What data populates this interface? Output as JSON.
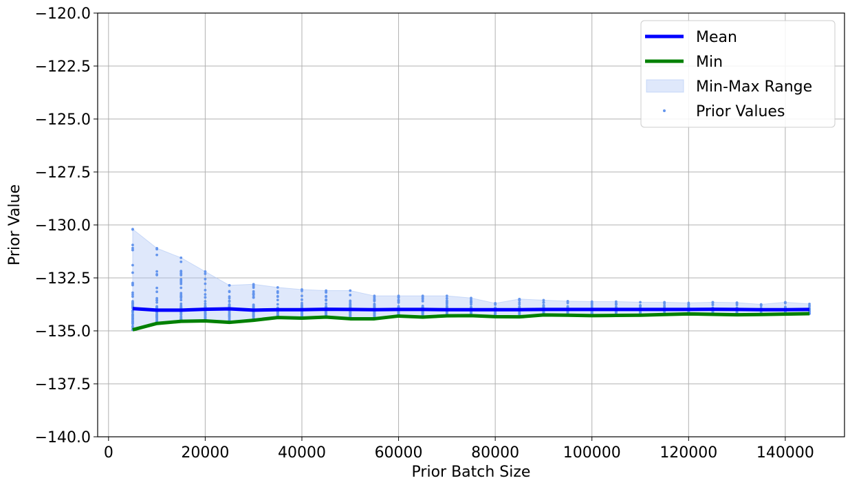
{
  "chart_data": {
    "type": "line",
    "title": "",
    "xlabel": "Prior Batch Size",
    "ylabel": "Prior Value",
    "xlim": [
      -2250,
      152250
    ],
    "ylim": [
      -140.0,
      -120.0
    ],
    "x_ticks": [
      0,
      20000,
      40000,
      60000,
      80000,
      100000,
      120000,
      140000
    ],
    "x_tick_labels": [
      "0",
      "20000",
      "40000",
      "60000",
      "80000",
      "100000",
      "120000",
      "140000"
    ],
    "y_ticks": [
      -140.0,
      -137.5,
      -135.0,
      -132.5,
      -130.0,
      -127.5,
      -125.0,
      -122.5,
      -120.0
    ],
    "y_tick_labels": [
      "−140.0",
      "−137.5",
      "−135.0",
      "−132.5",
      "−130.0",
      "−127.5",
      "−125.0",
      "−122.5",
      "−120.0"
    ],
    "grid": true,
    "legend_position": "top-right",
    "x": [
      5000,
      10000,
      15000,
      20000,
      25000,
      30000,
      35000,
      40000,
      45000,
      50000,
      55000,
      60000,
      65000,
      70000,
      75000,
      80000,
      85000,
      90000,
      95000,
      100000,
      105000,
      110000,
      115000,
      120000,
      125000,
      130000,
      135000,
      140000,
      145000
    ],
    "series": [
      {
        "name": "Mean",
        "kind": "line",
        "color": "#0000ff",
        "values": [
          -133.95,
          -134.02,
          -134.02,
          -133.98,
          -133.96,
          -134.02,
          -134.0,
          -134.0,
          -133.98,
          -133.99,
          -134.0,
          -133.99,
          -133.99,
          -134.0,
          -134.0,
          -134.0,
          -134.0,
          -133.99,
          -133.99,
          -133.99,
          -133.99,
          -133.99,
          -133.99,
          -133.99,
          -133.98,
          -133.99,
          -134.0,
          -134.0,
          -133.99
        ]
      },
      {
        "name": "Min",
        "kind": "line",
        "color": "#008000",
        "values": [
          -134.95,
          -134.65,
          -134.55,
          -134.53,
          -134.6,
          -134.5,
          -134.37,
          -134.4,
          -134.35,
          -134.43,
          -134.43,
          -134.3,
          -134.35,
          -134.29,
          -134.28,
          -134.33,
          -134.34,
          -134.25,
          -134.26,
          -134.28,
          -134.27,
          -134.26,
          -134.23,
          -134.2,
          -134.22,
          -134.24,
          -134.23,
          -134.21,
          -134.19
        ]
      },
      {
        "name": "Min-Max Range",
        "kind": "band",
        "color": "#aec6f5",
        "lower": [
          -134.95,
          -134.65,
          -134.55,
          -134.53,
          -134.6,
          -134.5,
          -134.37,
          -134.4,
          -134.35,
          -134.43,
          -134.43,
          -134.3,
          -134.35,
          -134.29,
          -134.28,
          -134.33,
          -134.34,
          -134.25,
          -134.26,
          -134.28,
          -134.27,
          -134.26,
          -134.23,
          -134.2,
          -134.22,
          -134.24,
          -134.23,
          -134.21,
          -134.19
        ],
        "upper": [
          -130.2,
          -131.1,
          -131.55,
          -132.2,
          -132.85,
          -132.8,
          -132.95,
          -133.05,
          -133.1,
          -133.1,
          -133.35,
          -133.35,
          -133.35,
          -133.35,
          -133.45,
          -133.7,
          -133.5,
          -133.55,
          -133.6,
          -133.62,
          -133.62,
          -133.65,
          -133.65,
          -133.68,
          -133.65,
          -133.67,
          -133.75,
          -133.65,
          -133.73
        ]
      },
      {
        "name": "Prior Values",
        "kind": "scatter",
        "color": "#6495ed",
        "description_of_points": "vertical columns of samples at each x between the Min and max values"
      }
    ]
  }
}
